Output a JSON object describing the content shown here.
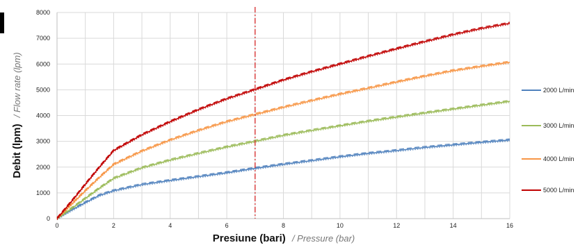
{
  "chart_data": {
    "type": "line",
    "title": "",
    "xlabel": {
      "main": "Presiune (bari)",
      "secondary": "/ Pressure (bar)"
    },
    "ylabel": {
      "main": "Debit (lpm)",
      "secondary": "/ Flow rate (lpm)"
    },
    "xlim": [
      0,
      16
    ],
    "ylim": [
      0,
      8000
    ],
    "x_ticks": [
      0,
      2,
      4,
      6,
      8,
      10,
      12,
      14,
      16
    ],
    "y_ticks": [
      0,
      1000,
      2000,
      3000,
      4000,
      5000,
      6000,
      7000,
      8000
    ],
    "grid": true,
    "legend_position": "right",
    "reference_line": {
      "x": 7,
      "color": "#d62728",
      "style": "dash-dot"
    },
    "series": [
      {
        "name": "2000 L/min",
        "color": "#4f81bd",
        "x": [
          0,
          0.5,
          1,
          1.5,
          2,
          3,
          4,
          5,
          6,
          7,
          8,
          9,
          10,
          11,
          12,
          13,
          14,
          15,
          16
        ],
        "values": [
          0,
          320,
          620,
          900,
          1080,
          1320,
          1480,
          1630,
          1780,
          1950,
          2110,
          2250,
          2400,
          2530,
          2640,
          2760,
          2860,
          2960,
          3050
        ]
      },
      {
        "name": "3000 L/min",
        "color": "#9bbb59",
        "x": [
          0,
          0.5,
          1,
          1.5,
          2,
          3,
          4,
          5,
          6,
          7,
          8,
          9,
          10,
          11,
          12,
          13,
          14,
          15,
          16
        ],
        "values": [
          0,
          380,
          780,
          1180,
          1560,
          1970,
          2270,
          2530,
          2780,
          3000,
          3230,
          3420,
          3600,
          3780,
          3940,
          4100,
          4250,
          4400,
          4550
        ]
      },
      {
        "name": "4000 L/min",
        "color": "#f79646",
        "x": [
          0,
          0.5,
          1,
          1.5,
          2,
          3,
          4,
          5,
          6,
          7,
          8,
          9,
          10,
          11,
          12,
          13,
          14,
          15,
          16
        ],
        "values": [
          0,
          540,
          1080,
          1600,
          2100,
          2620,
          3050,
          3420,
          3760,
          4040,
          4320,
          4580,
          4830,
          5060,
          5300,
          5530,
          5740,
          5910,
          6070
        ]
      },
      {
        "name": "5000 L/min",
        "color": "#c00000",
        "x": [
          0,
          0.5,
          1,
          1.5,
          2,
          3,
          4,
          5,
          6,
          7,
          8,
          9,
          10,
          11,
          12,
          13,
          14,
          15,
          16
        ],
        "values": [
          0,
          650,
          1330,
          2000,
          2640,
          3250,
          3760,
          4230,
          4650,
          5010,
          5380,
          5700,
          6000,
          6300,
          6590,
          6870,
          7140,
          7380,
          7580
        ]
      }
    ]
  }
}
